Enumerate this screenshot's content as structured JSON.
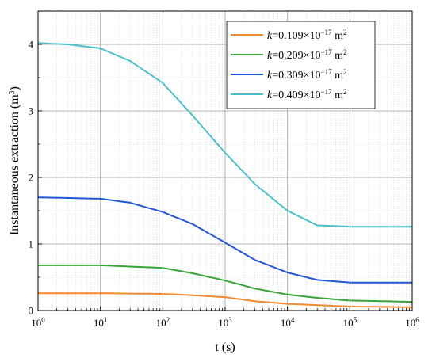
{
  "chart_data": {
    "type": "line",
    "xlabel": "t (s)",
    "ylabel": "Instantaneous extraction (m",
    "ylabel_sup": "3",
    "ylabel_close": ")",
    "xscale": "log",
    "xlim": [
      1,
      1000000
    ],
    "ylim": [
      0,
      4.5
    ],
    "grid": true,
    "legend_position": "top-right",
    "x_ticks": [
      {
        "value": 1,
        "base": "10",
        "exp": "0"
      },
      {
        "value": 10,
        "base": "10",
        "exp": "1"
      },
      {
        "value": 100,
        "base": "10",
        "exp": "2"
      },
      {
        "value": 1000,
        "base": "10",
        "exp": "3"
      },
      {
        "value": 10000,
        "base": "10",
        "exp": "4"
      },
      {
        "value": 100000,
        "base": "10",
        "exp": "5"
      },
      {
        "value": 1000000,
        "base": "10",
        "exp": "6"
      }
    ],
    "y_ticks": [
      {
        "value": 0,
        "label": "0"
      },
      {
        "value": 1,
        "label": "1"
      },
      {
        "value": 2,
        "label": "2"
      },
      {
        "value": 3,
        "label": "3"
      },
      {
        "value": 4,
        "label": "4"
      }
    ],
    "series": [
      {
        "name_k": "k",
        "name_main": "=0.109×10",
        "name_exp": "−17",
        "name_unit": " m",
        "name_unit_exp": "2",
        "color": "#f28a2e",
        "points": [
          [
            1,
            0.26
          ],
          [
            10,
            0.26
          ],
          [
            100,
            0.25
          ],
          [
            300,
            0.23
          ],
          [
            1000,
            0.2
          ],
          [
            3000,
            0.14
          ],
          [
            10000,
            0.1
          ],
          [
            100000,
            0.06
          ],
          [
            1000000,
            0.05
          ]
        ]
      },
      {
        "name_k": "k",
        "name_main": "=0.209×10",
        "name_exp": "−17",
        "name_unit": " m",
        "name_unit_exp": "2",
        "color": "#3aa339",
        "points": [
          [
            1,
            0.68
          ],
          [
            10,
            0.68
          ],
          [
            100,
            0.64
          ],
          [
            300,
            0.56
          ],
          [
            1000,
            0.45
          ],
          [
            3000,
            0.33
          ],
          [
            10000,
            0.24
          ],
          [
            30000,
            0.19
          ],
          [
            100000,
            0.15
          ],
          [
            1000000,
            0.13
          ]
        ]
      },
      {
        "name_k": "k",
        "name_main": "=0.309×10",
        "name_exp": "−17",
        "name_unit": " m",
        "name_unit_exp": "2",
        "color": "#2157d6",
        "points": [
          [
            1,
            1.7
          ],
          [
            10,
            1.68
          ],
          [
            30,
            1.62
          ],
          [
            100,
            1.48
          ],
          [
            300,
            1.3
          ],
          [
            1000,
            1.02
          ],
          [
            3000,
            0.76
          ],
          [
            10000,
            0.57
          ],
          [
            30000,
            0.46
          ],
          [
            100000,
            0.42
          ],
          [
            1000000,
            0.42
          ]
        ]
      },
      {
        "name_k": "k",
        "name_main": "=0.409×10",
        "name_exp": "−17",
        "name_unit": " m",
        "name_unit_exp": "2",
        "color": "#4cc0c9",
        "points": [
          [
            1,
            4.02
          ],
          [
            3,
            4.0
          ],
          [
            10,
            3.94
          ],
          [
            30,
            3.75
          ],
          [
            100,
            3.42
          ],
          [
            300,
            2.93
          ],
          [
            1000,
            2.37
          ],
          [
            3000,
            1.9
          ],
          [
            10000,
            1.5
          ],
          [
            30000,
            1.28
          ],
          [
            100000,
            1.26
          ],
          [
            1000000,
            1.26
          ]
        ]
      }
    ]
  }
}
